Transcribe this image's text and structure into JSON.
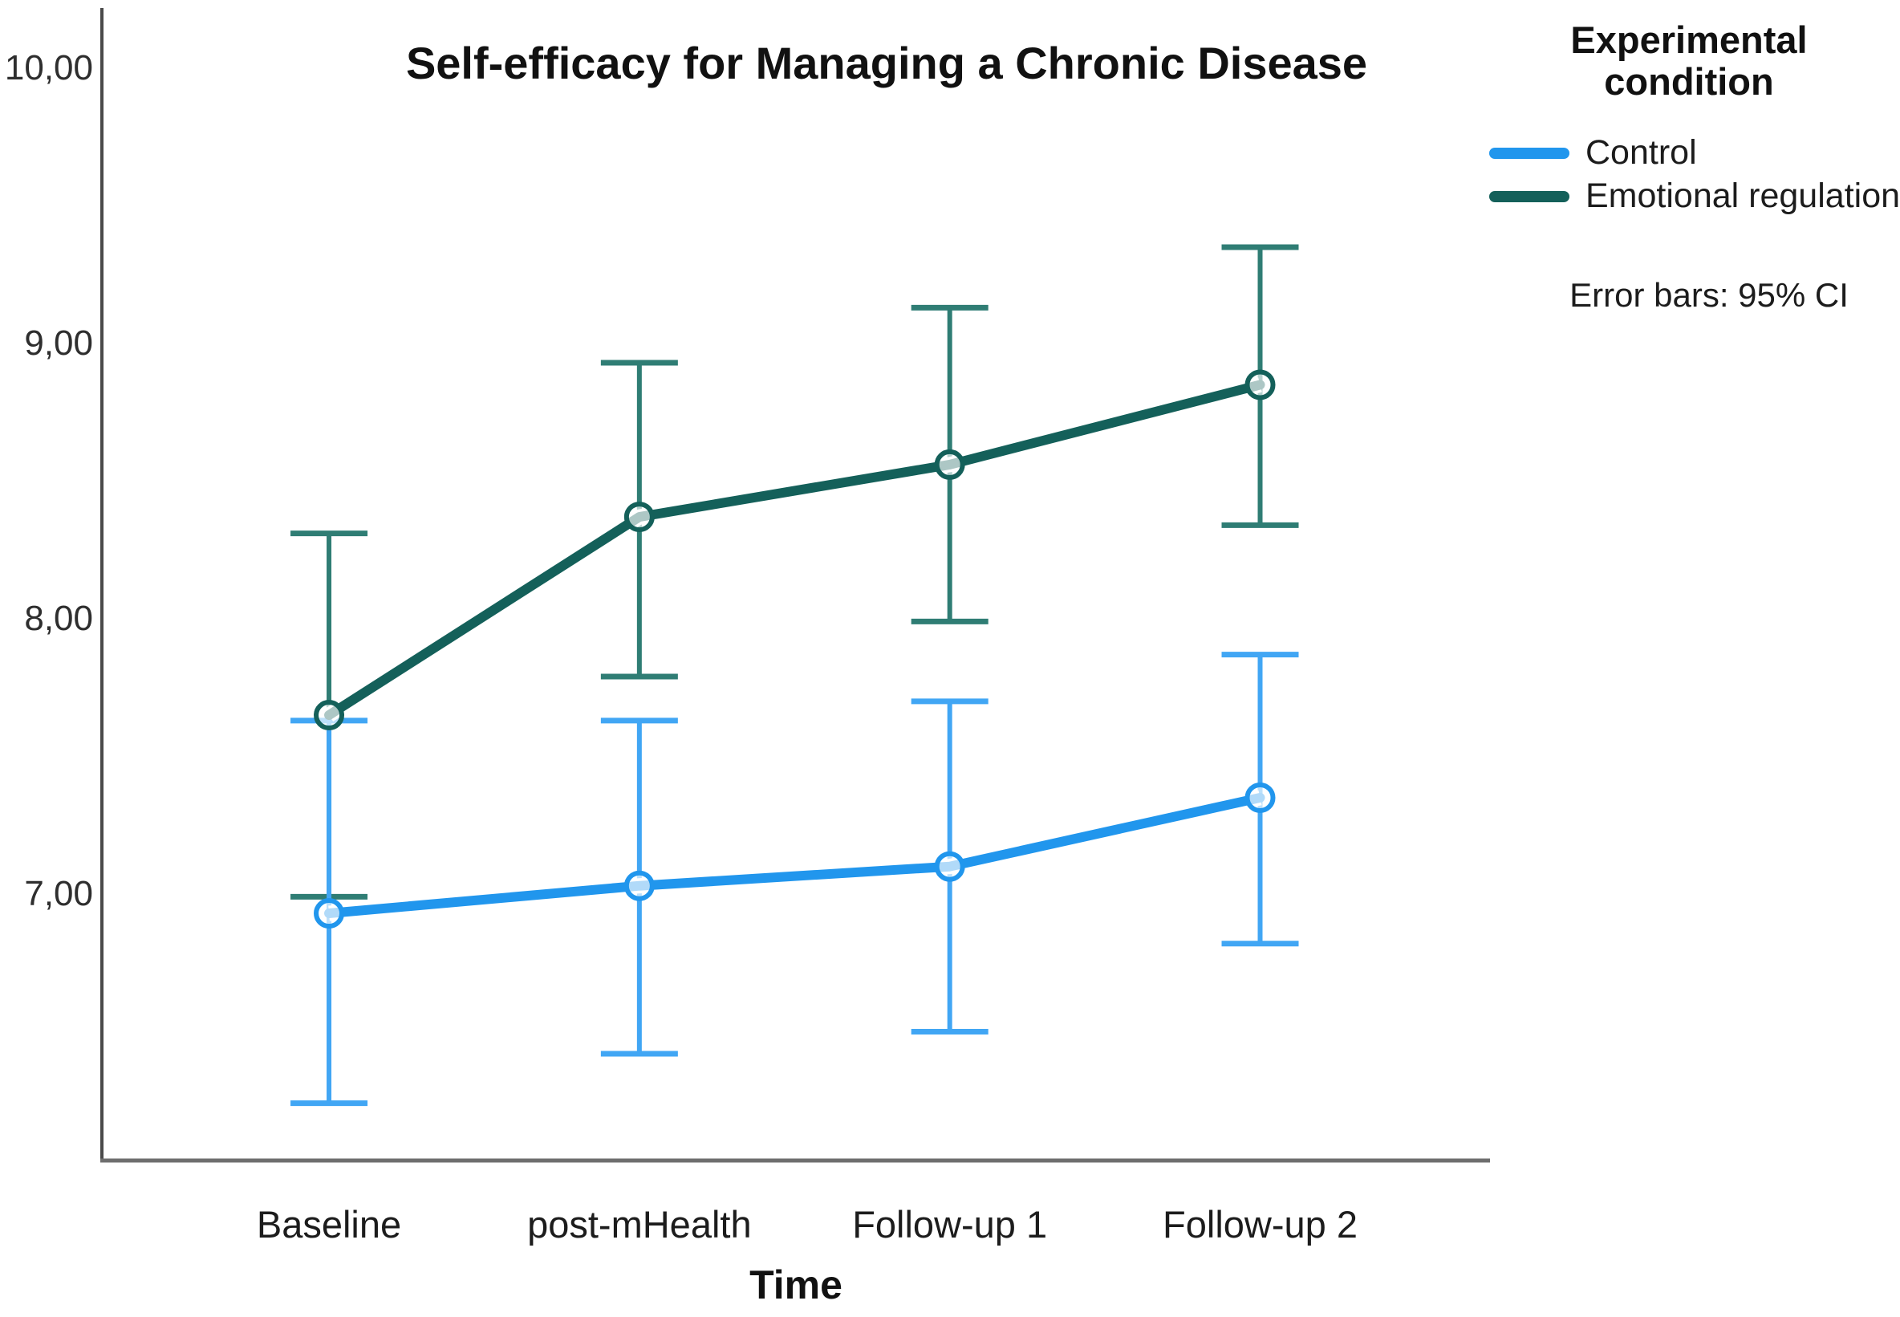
{
  "chart_data": {
    "type": "line",
    "title": "Self-efficacy for Managing a Chronic Disease",
    "xlabel": "Time",
    "ylabel": "",
    "categories": [
      "Baseline",
      "post-mHealth",
      "Follow-up 1",
      "Follow-up 2"
    ],
    "y_ticks": [
      10,
      9,
      8,
      7
    ],
    "y_tick_labels": [
      "10,00",
      "9,00",
      "8,00",
      "7,00"
    ],
    "ylim": [
      6.03,
      10.22
    ],
    "grid": false,
    "legend_position": "top-right outside",
    "error_bar_note": "Error bars: 95% CI",
    "series": [
      {
        "name": "Control",
        "color": "#2196ED",
        "error_color": "#41A6F4",
        "means": [
          6.93,
          7.03,
          7.1,
          7.35
        ],
        "ci_low": [
          6.24,
          6.42,
          6.5,
          6.82
        ],
        "ci_high": [
          7.63,
          7.63,
          7.7,
          7.87
        ]
      },
      {
        "name": "Emotional regulation",
        "color": "#14605A",
        "error_color": "#2F7D74",
        "means": [
          7.65,
          8.37,
          8.56,
          8.85
        ],
        "ci_low": [
          6.99,
          7.79,
          7.99,
          8.34
        ],
        "ci_high": [
          8.31,
          8.93,
          9.13,
          9.35
        ]
      }
    ]
  },
  "legend": {
    "title_line1": "Experimental",
    "title_line2": "condition"
  }
}
